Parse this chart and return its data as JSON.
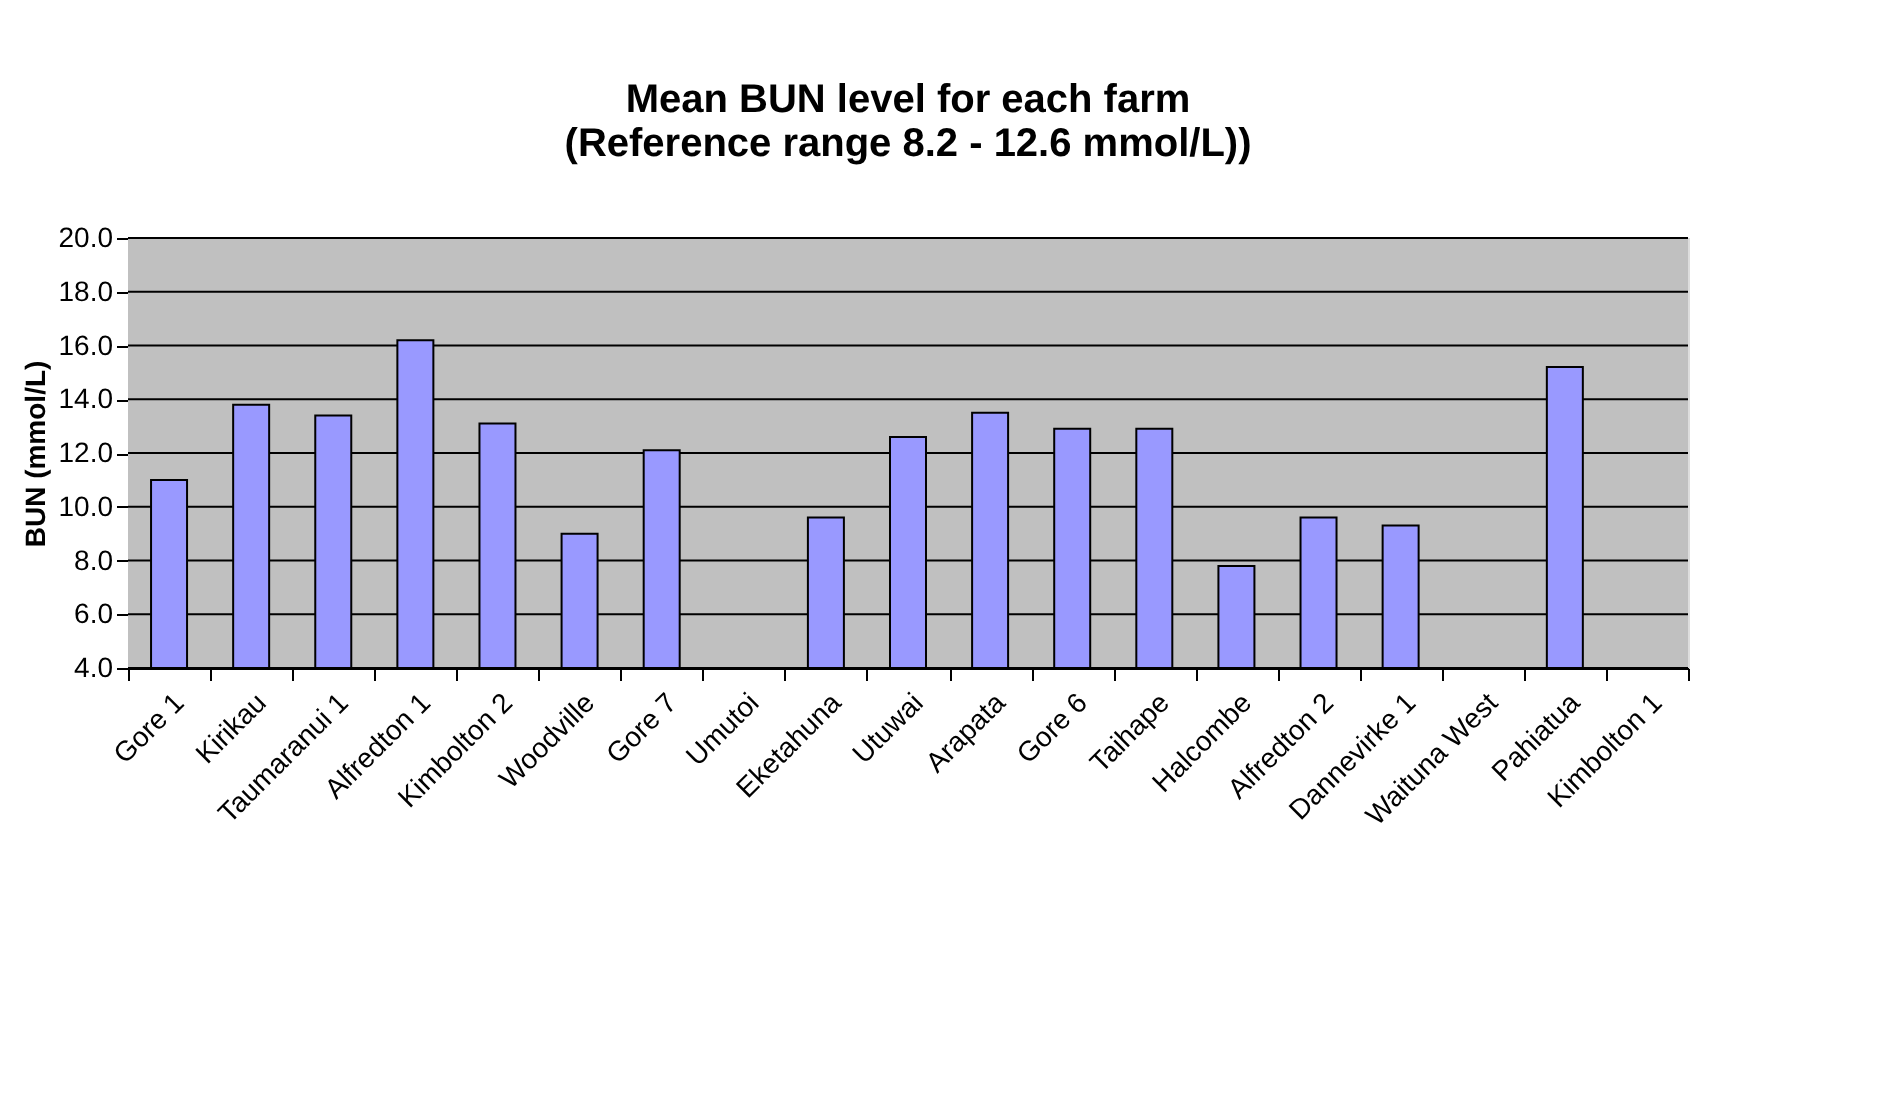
{
  "chart_data": {
    "type": "bar",
    "title": [
      "Mean BUN level for each farm",
      "(Reference range 8.2 - 12.6 mmol/L))"
    ],
    "ylabel": "BUN (mmol/L)",
    "categories": [
      "Gore 1",
      "Kirikau",
      "Taumaranui 1",
      "Alfredton 1",
      "Kimbolton 2",
      "Woodville",
      "Gore 7",
      "Umutoi",
      "Eketahuna",
      "Utuwai",
      "Arapata",
      "Gore 6",
      "Taihape",
      "Halcombe",
      "Alfredton 2",
      "Dannevirke 1",
      "Waituna West",
      "Pahiatua",
      "Kimbolton 1"
    ],
    "values": [
      11.0,
      13.8,
      13.4,
      16.2,
      13.1,
      9.0,
      12.1,
      null,
      9.6,
      12.6,
      13.5,
      12.9,
      12.9,
      7.8,
      9.6,
      9.3,
      null,
      15.2,
      null
    ],
    "color": "#9999ff",
    "ylim": [
      4.0,
      20.0
    ],
    "yticks": [
      {
        "value": 4,
        "label": "4.0"
      },
      {
        "value": 6,
        "label": "6.0"
      },
      {
        "value": 8,
        "label": "8.0"
      },
      {
        "value": 10,
        "label": "10.0"
      },
      {
        "value": 12,
        "label": "12.0"
      },
      {
        "value": 14,
        "label": "14.0"
      },
      {
        "value": 16,
        "label": "16.0"
      },
      {
        "value": 18,
        "label": "18.0"
      },
      {
        "value": 20,
        "label": "20.0"
      }
    ],
    "grid": "y"
  }
}
